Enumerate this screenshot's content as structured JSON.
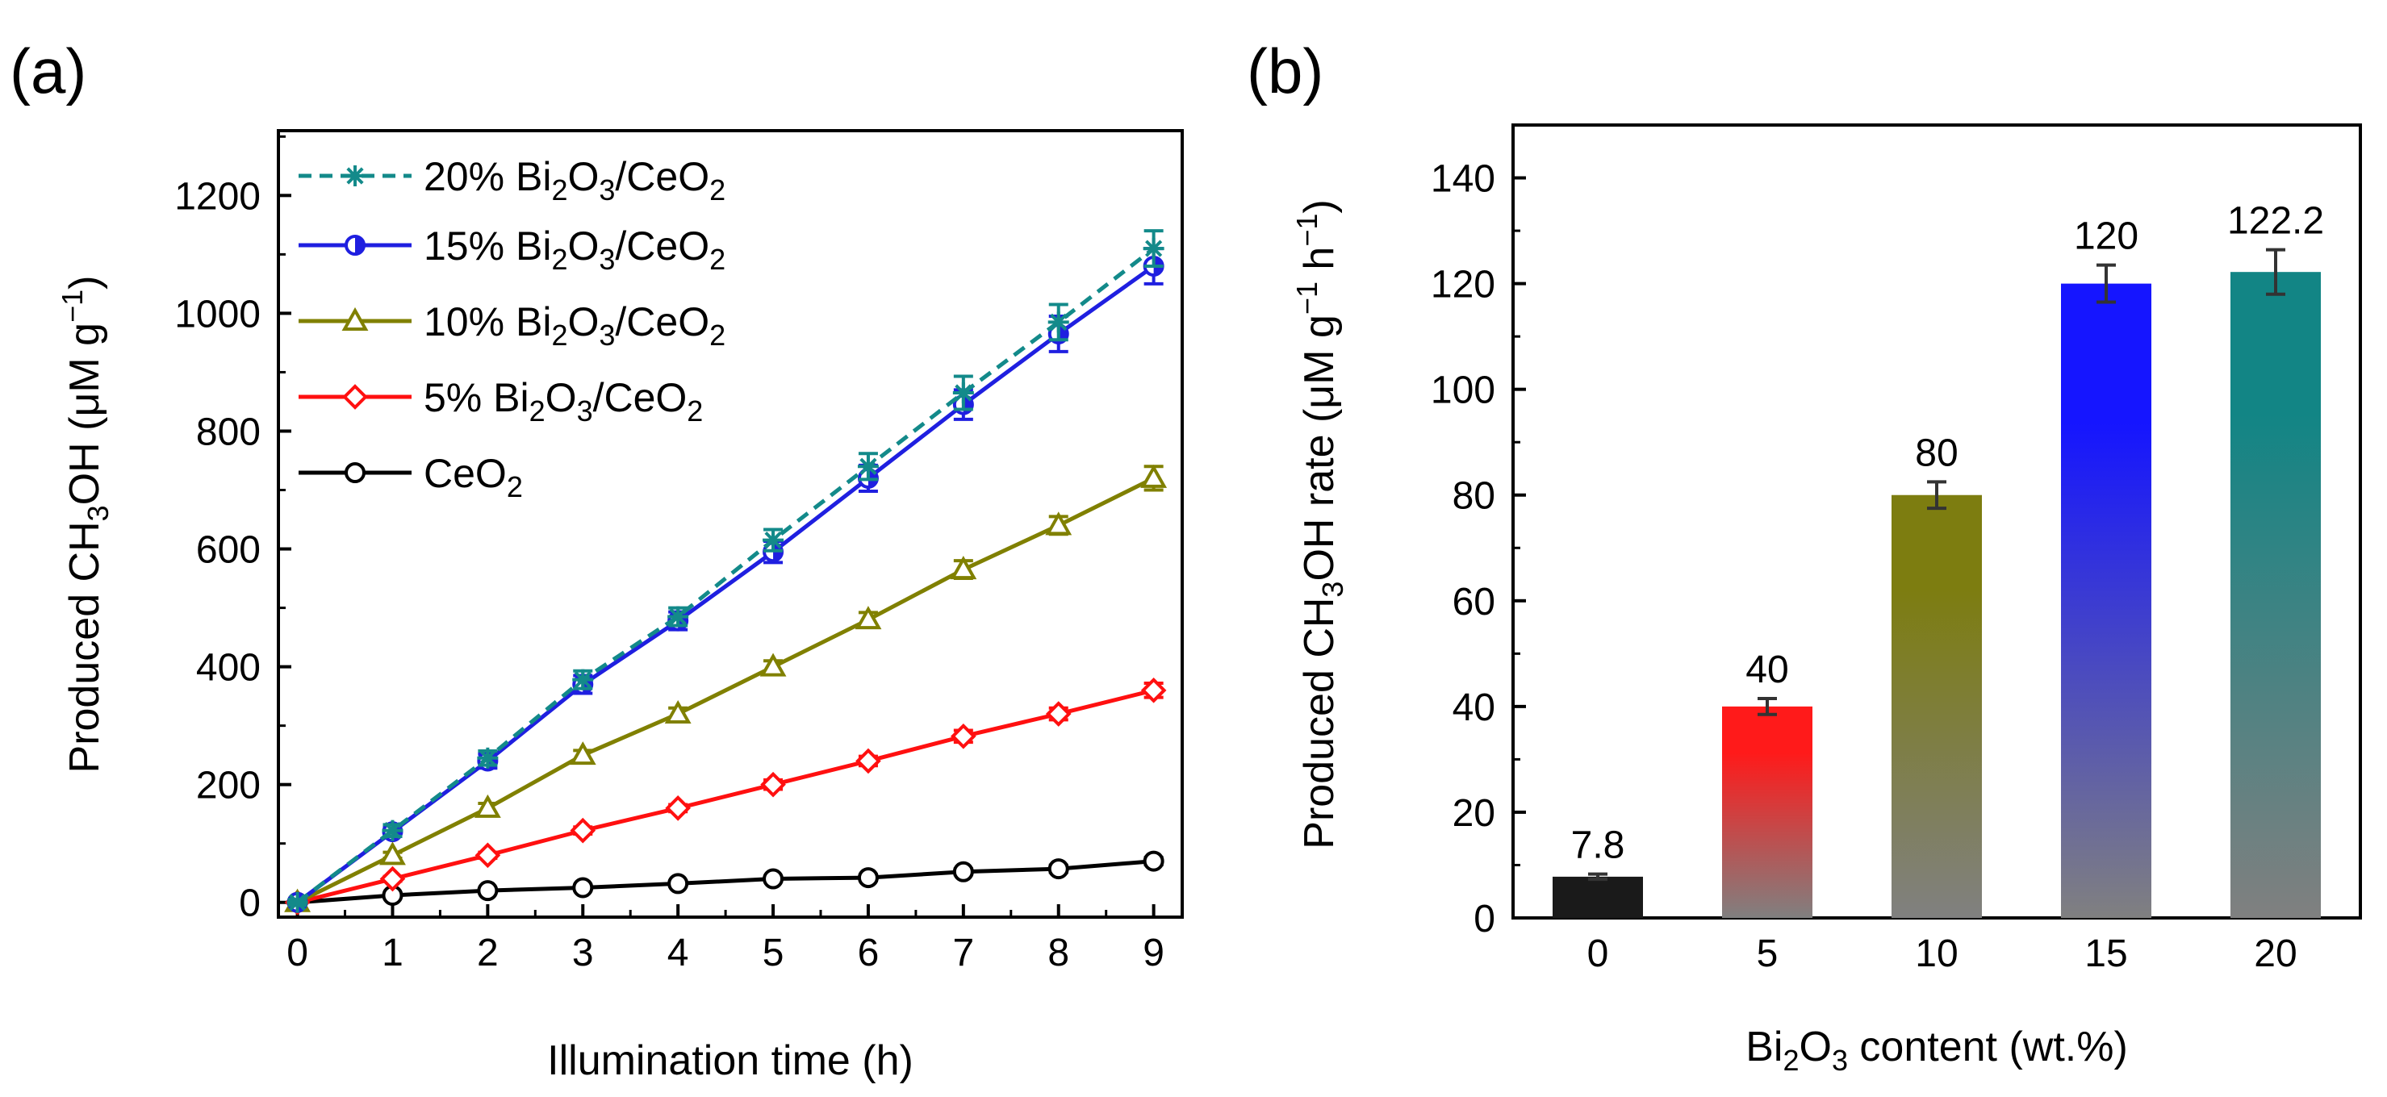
{
  "chart_data": [
    {
      "panel": "(a)",
      "type": "line",
      "xlabel": "Illumination time (h)",
      "ylabel": "Produced CH3OH (μM g−1)",
      "ylabel_parts": {
        "pre": "Produced CH",
        "sub": "3",
        "mid": "OH (μM g",
        "sup": "−1",
        "post": ")"
      },
      "xlim": [
        -0.2,
        9.3
      ],
      "ylim": [
        -25,
        1310
      ],
      "xticks": [
        0,
        1,
        2,
        3,
        4,
        5,
        6,
        7,
        8,
        9
      ],
      "yticks": [
        0,
        200,
        400,
        600,
        800,
        1000,
        1200
      ],
      "x": [
        0,
        1,
        2,
        3,
        4,
        5,
        6,
        7,
        8,
        9
      ],
      "series": [
        {
          "name": "20% Bi2O3/CeO2",
          "legend": {
            "pre": "20% Bi",
            "s1": "2",
            "mid": "O",
            "s2": "3",
            "post": "/CeO",
            "s3": "2"
          },
          "color": "#138a8a",
          "marker": "asterisk",
          "dash": true,
          "values": [
            0,
            122,
            245,
            378,
            485,
            615,
            740,
            865,
            985,
            1110
          ],
          "err": [
            5,
            10,
            12,
            15,
            15,
            18,
            22,
            28,
            30,
            30
          ]
        },
        {
          "name": "15% Bi2O3/CeO2",
          "legend": {
            "pre": "15% Bi",
            "s1": "2",
            "mid": "O",
            "s2": "3",
            "post": "/CeO",
            "s3": "2"
          },
          "color": "#1f1fe0",
          "marker": "half-circle",
          "dash": false,
          "values": [
            0,
            120,
            240,
            370,
            478,
            595,
            720,
            845,
            965,
            1080
          ],
          "err": [
            5,
            8,
            12,
            15,
            15,
            18,
            22,
            25,
            30,
            30
          ]
        },
        {
          "name": "10% Bi2O3/CeO2",
          "legend": {
            "pre": "10% Bi",
            "s1": "2",
            "mid": "O",
            "s2": "3",
            "post": "/CeO",
            "s3": "2"
          },
          "color": "#808000",
          "marker": "triangle",
          "dash": false,
          "values": [
            0,
            80,
            160,
            250,
            320,
            400,
            480,
            565,
            640,
            720
          ],
          "err": [
            3,
            5,
            8,
            8,
            10,
            10,
            12,
            15,
            15,
            20
          ]
        },
        {
          "name": "5% Bi2O3/CeO2",
          "legend": {
            "pre": " 5% Bi",
            "s1": "2",
            "mid": "O",
            "s2": "3",
            "post": "/CeO",
            "s3": "2"
          },
          "color": "#ff1010",
          "marker": "diamond",
          "dash": false,
          "values": [
            0,
            40,
            80,
            122,
            160,
            200,
            240,
            282,
            320,
            360
          ],
          "err": [
            2,
            4,
            5,
            6,
            6,
            8,
            8,
            10,
            10,
            12
          ]
        },
        {
          "name": "CeO2",
          "legend": {
            "pre": "CeO",
            "s1": "2",
            "mid": "",
            "s2": "",
            "post": "",
            "s3": ""
          },
          "color": "#000000",
          "marker": "circle",
          "dash": false,
          "values": [
            0,
            12,
            20,
            25,
            32,
            40,
            42,
            52,
            57,
            70
          ],
          "err": [
            2,
            3,
            3,
            4,
            4,
            4,
            5,
            5,
            6,
            6
          ]
        }
      ]
    },
    {
      "panel": "(b)",
      "type": "bar",
      "xlabel": "Bi2O3 content (wt.%)",
      "xlabel_parts": {
        "pre": "Bi",
        "sub": "2",
        "post": "O",
        "sub2": "3",
        "post2": " content (wt.%)"
      },
      "ylabel": "Produced CH3OH rate (μM g−1 h−1)",
      "ylabel_parts": {
        "pre": "Produced CH",
        "sub": "3",
        "mid": "OH rate (μM g",
        "sup": "−1",
        "mid2": " h",
        "sup2": "−1",
        "post": ")"
      },
      "ylim": [
        0,
        150
      ],
      "yticks": [
        0,
        20,
        40,
        60,
        80,
        100,
        120,
        140
      ],
      "categories": [
        "0",
        "5",
        "10",
        "15",
        "20"
      ],
      "values": [
        7.8,
        40,
        80,
        120,
        122.2
      ],
      "value_labels": [
        "7.8",
        "40",
        "80",
        "120",
        "122.2"
      ],
      "err": [
        0.5,
        1.5,
        2.5,
        3.5,
        4.2
      ],
      "colors": [
        "#1a1a1a",
        "#ff1a1a",
        "#7d7d10",
        "#1515ff",
        "#128585"
      ],
      "fade_color": "#808080"
    }
  ]
}
